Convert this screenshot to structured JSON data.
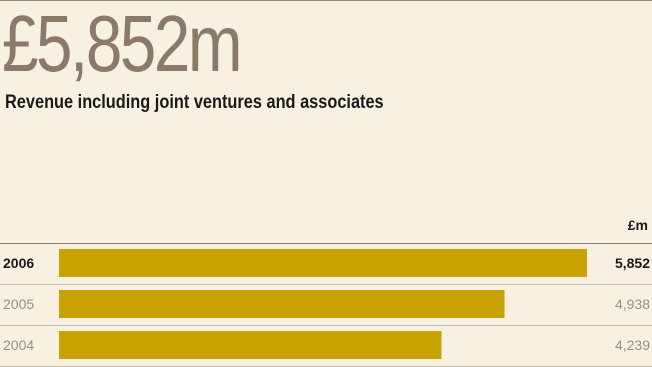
{
  "headline": {
    "value": "£5,852m"
  },
  "subtitle": "Revenue including joint ventures and associates",
  "chart_data": {
    "type": "bar",
    "orientation": "horizontal",
    "unit_label": "£m",
    "categories": [
      "2006",
      "2005",
      "2004"
    ],
    "values": [
      5852,
      4938,
      4239
    ],
    "value_labels": [
      "5,852",
      "4,938",
      "4,239"
    ],
    "highlight_category": "2006",
    "colors": {
      "bar": "#c8a200",
      "rule_dark": "#8c8276",
      "rule_light": "#c7bcac",
      "highlight_text": "#1a1a1a",
      "muted_text": "#9a8f80",
      "background": "#f8f1e1"
    }
  }
}
